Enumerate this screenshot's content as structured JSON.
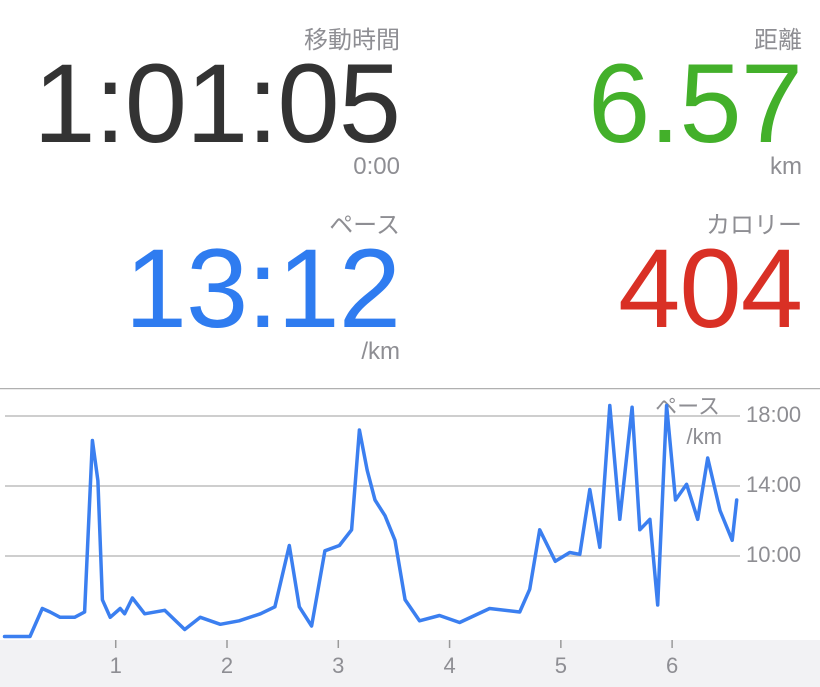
{
  "stats": [
    {
      "label": "移動時間",
      "value": "1:01:05",
      "unit": "0:00",
      "color": "#333333",
      "column": "left",
      "row": 0
    },
    {
      "label": "距離",
      "value": "6.57",
      "unit": "km",
      "color": "#43b02a",
      "column": "right",
      "row": 0
    },
    {
      "label": "ペース",
      "value": "13:12",
      "unit": "/km",
      "color": "#2f7cf0",
      "column": "left",
      "row": 1
    },
    {
      "label": "カロリー",
      "value": "404",
      "color": "#d93025",
      "column": "right",
      "row": 1
    }
  ],
  "chart_data": {
    "type": "line",
    "y_label": "ペース",
    "y_unit": "/km",
    "grid": true,
    "xlim": [
      -0.04,
      6.61
    ],
    "xticks": [
      1,
      2,
      3,
      4,
      5,
      6
    ],
    "ylim": [
      5.2,
      19.2
    ],
    "yticks": [
      {
        "value": 10,
        "label": "10:00"
      },
      {
        "value": 14,
        "label": "14:00"
      },
      {
        "value": 18,
        "label": "18:00"
      }
    ],
    "series": [
      {
        "name": "ペース",
        "color": "#3b7ff0",
        "x": [
          0,
          0.23,
          0.34,
          0.41,
          0.5,
          0.63,
          0.72,
          0.79,
          0.84,
          0.88,
          0.95,
          1.04,
          1.08,
          1.15,
          1.26,
          1.44,
          1.62,
          1.76,
          1.94,
          2.11,
          2.3,
          2.43,
          2.56,
          2.65,
          2.76,
          2.88,
          3.01,
          3.12,
          3.19,
          3.26,
          3.33,
          3.42,
          3.51,
          3.6,
          3.73,
          3.91,
          4.09,
          4.36,
          4.63,
          4.72,
          4.81,
          4.95,
          5.08,
          5.17,
          5.26,
          5.35,
          5.44,
          5.53,
          5.64,
          5.71,
          5.8,
          5.87,
          5.95,
          6.03,
          6.13,
          6.23,
          6.32,
          6.43,
          6.54,
          6.58
        ],
        "values": [
          5.4,
          5.4,
          7.0,
          6.8,
          6.5,
          6.5,
          6.8,
          16.6,
          14.3,
          7.5,
          6.5,
          7.0,
          6.7,
          7.6,
          6.7,
          6.9,
          5.8,
          6.5,
          6.1,
          6.3,
          6.7,
          7.1,
          10.6,
          7.1,
          6.0,
          10.3,
          10.6,
          11.5,
          17.2,
          14.9,
          13.2,
          12.3,
          10.9,
          7.5,
          6.3,
          6.6,
          6.2,
          7.0,
          6.8,
          8.1,
          11.5,
          9.7,
          10.2,
          10.1,
          13.8,
          10.5,
          18.6,
          12.1,
          18.5,
          11.5,
          12.1,
          7.2,
          18.6,
          13.2,
          14.1,
          12.1,
          15.6,
          12.6,
          10.9,
          13.2
        ]
      }
    ]
  }
}
